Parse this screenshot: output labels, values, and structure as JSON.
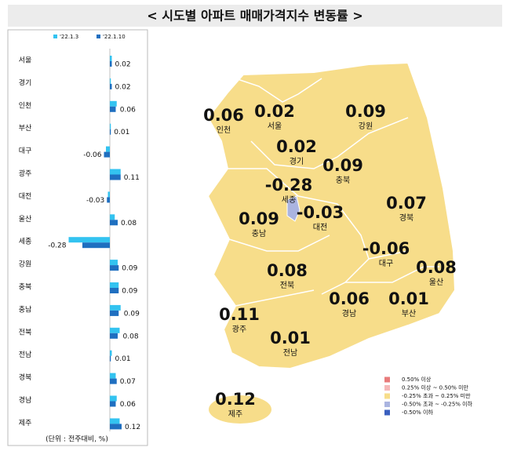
{
  "header": {
    "title": "< 시도별 아파트 매매가격지수 변동률 >"
  },
  "chart_data": {
    "type": "bar",
    "orientation": "horizontal",
    "categories": [
      "서울",
      "경기",
      "인천",
      "부산",
      "대구",
      "광주",
      "대전",
      "울산",
      "세종",
      "강원",
      "충북",
      "충남",
      "전북",
      "전남",
      "경북",
      "경남",
      "제주"
    ],
    "series": [
      {
        "name": "'22.1.3",
        "color": "#33c3f0",
        "values": [
          0.02,
          0.01,
          0.07,
          0.01,
          -0.04,
          0.11,
          -0.02,
          0.05,
          -0.42,
          0.08,
          0.09,
          0.11,
          0.1,
          0.02,
          0.06,
          0.07,
          0.1
        ]
      },
      {
        "name": "'22.1.10",
        "color": "#1f6fc0",
        "values": [
          0.02,
          0.02,
          0.06,
          0.01,
          -0.06,
          0.11,
          -0.03,
          0.08,
          -0.28,
          0.09,
          0.09,
          0.09,
          0.08,
          0.01,
          0.07,
          0.06,
          0.12
        ]
      }
    ],
    "note": "(단위 : 전주대비, %)"
  },
  "map": {
    "regions": [
      {
        "name": "인천",
        "value": 0.06
      },
      {
        "name": "서울",
        "value": 0.02
      },
      {
        "name": "강원",
        "value": 0.09
      },
      {
        "name": "경기",
        "value": 0.02
      },
      {
        "name": "충북",
        "value": 0.09
      },
      {
        "name": "세종",
        "value": -0.28
      },
      {
        "name": "대전",
        "value": -0.03
      },
      {
        "name": "경북",
        "value": 0.07
      },
      {
        "name": "충남",
        "value": 0.09
      },
      {
        "name": "대구",
        "value": -0.06
      },
      {
        "name": "울산",
        "value": 0.08
      },
      {
        "name": "전북",
        "value": 0.08
      },
      {
        "name": "경남",
        "value": 0.06
      },
      {
        "name": "부산",
        "value": 0.01
      },
      {
        "name": "광주",
        "value": 0.11
      },
      {
        "name": "전남",
        "value": 0.01
      },
      {
        "name": "제주",
        "value": 0.12
      }
    ]
  },
  "legend": {
    "items": [
      {
        "label": "0.50% 이상",
        "color": "#e87b7b"
      },
      {
        "label": "0.25% 이상 ~ 0.50% 미만",
        "color": "#f5b8b8"
      },
      {
        "label": "-0.25% 초과 ~ 0.25% 미만",
        "color": "#f7dd8a"
      },
      {
        "label": "-0.50% 초과 ~ -0.25% 이하",
        "color": "#aab4e0"
      },
      {
        "label": "-0.50% 이하",
        "color": "#3a5fbf"
      }
    ]
  }
}
